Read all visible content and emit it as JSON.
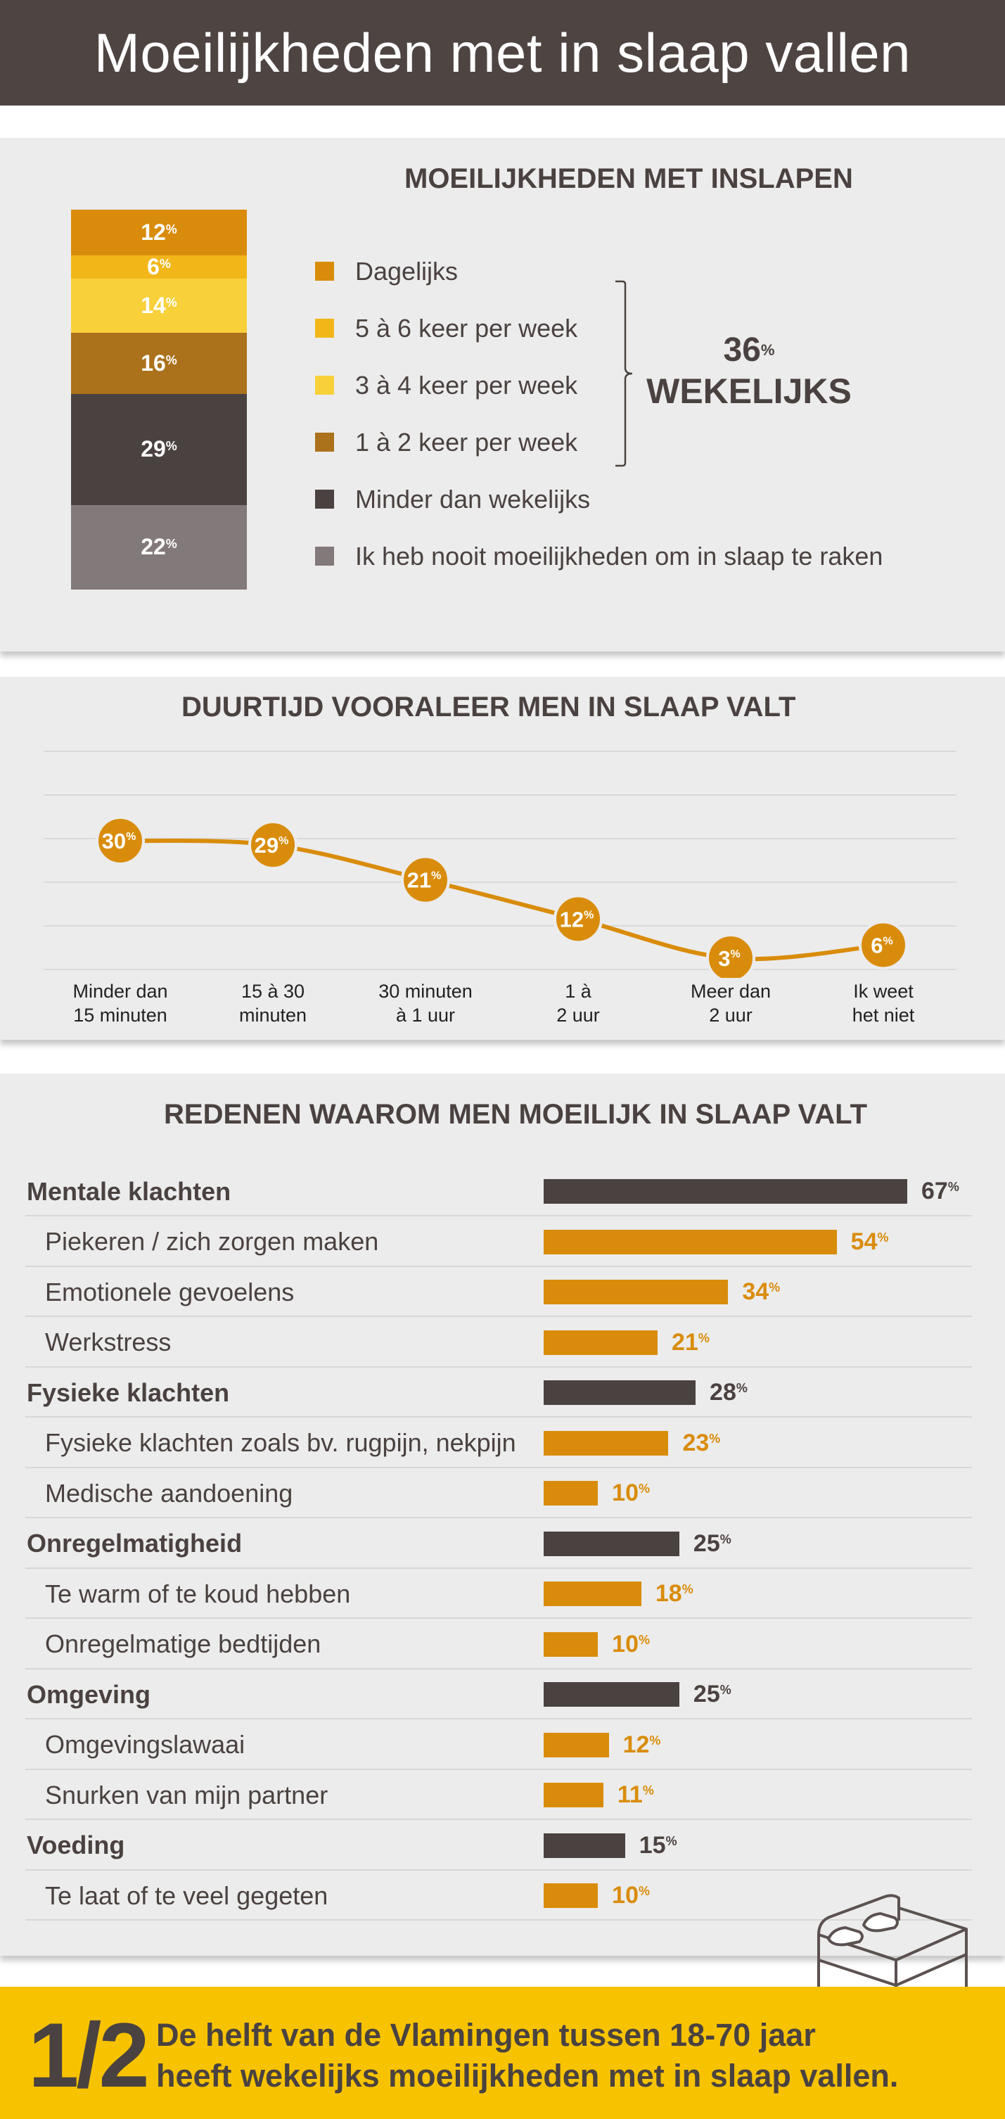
{
  "header": {
    "title": "Moeilijkheden met in slaap vallen"
  },
  "section1": {
    "title": "MOEILIJKHEDEN MET INSLAPEN",
    "stack": [
      {
        "value": 12,
        "label": "12",
        "color": "#d98c0b"
      },
      {
        "value": 6,
        "label": "6",
        "color": "#f2b619"
      },
      {
        "value": 14,
        "label": "14",
        "color": "#f8d03a"
      },
      {
        "value": 16,
        "label": "16",
        "color": "#ab711b"
      },
      {
        "value": 29,
        "label": "29",
        "color": "#4a4240"
      },
      {
        "value": 22,
        "label": "22",
        "color": "#82797a"
      }
    ],
    "legend": [
      {
        "label": "Dagelijks",
        "color": "#d98c0b"
      },
      {
        "label": "5 à 6 keer per week",
        "color": "#f2b619"
      },
      {
        "label": "3 à 4 keer per week",
        "color": "#f8d03a"
      },
      {
        "label": "1 à 2 keer per week",
        "color": "#ab711b"
      },
      {
        "label": "Minder dan wekelijks",
        "color": "#4a4240"
      },
      {
        "label": "Ik heb nooit moeilijkheden om in slaap te raken",
        "color": "#82797a"
      }
    ],
    "weekly_pct": "36",
    "weekly_label": "WEKELIJKS",
    "percent_sign": "%"
  },
  "section2": {
    "title": "DUURTIJD VOORALEER MEN IN SLAAP VALT"
  },
  "section3": {
    "title": "REDENEN WAAROM MEN MOEILIJK IN SLAAP VALT"
  },
  "footer": {
    "fraction": "1/2",
    "line1": "De helft van de Vlamingen tussen 18-70 jaar",
    "line2": "heeft wekelijks moeilijkheden met in slaap vallen."
  },
  "chart_data": [
    {
      "type": "bar",
      "stacked": true,
      "title": "MOEILIJKHEDEN MET INSLAPEN",
      "categories": [
        "Dagelijks",
        "5 à 6 keer per week",
        "3 à 4 keer per week",
        "1 à 2 keer per week",
        "Minder dan wekelijks",
        "Ik heb nooit moeilijkheden om in slaap te raken"
      ],
      "values": [
        12,
        6,
        14,
        16,
        29,
        22
      ],
      "annotation": "36% WEKELIJKS"
    },
    {
      "type": "line",
      "title": "DUURTIJD VOORALEER MEN IN SLAAP VALT",
      "categories": [
        "Minder dan 15 minuten",
        "15 à 30 minuten",
        "30 minuten à 1 uur",
        "1 à 2 uur",
        "Meer dan 2 uur",
        "Ik weet het niet"
      ],
      "category_lines": [
        [
          "Minder dan",
          "15 minuten"
        ],
        [
          "15 à 30",
          "minuten"
        ],
        [
          "30 minuten",
          "à 1 uur"
        ],
        [
          "1 à",
          "2 uur"
        ],
        [
          "Meer dan",
          "2 uur"
        ],
        [
          "Ik weet",
          "het niet"
        ]
      ],
      "values": [
        30,
        29,
        21,
        12,
        3,
        6
      ],
      "ylim": [
        0,
        50
      ],
      "grid": true,
      "color": "#d98c0b"
    },
    {
      "type": "bar",
      "orientation": "horizontal",
      "title": "REDENEN WAAROM MEN MOEILIJK IN SLAAP VALT",
      "max": 67,
      "rows": [
        {
          "label": "Mentale klachten",
          "value": 67,
          "kind": "category"
        },
        {
          "label": "Piekeren / zich zorgen maken",
          "value": 54,
          "kind": "sub"
        },
        {
          "label": "Emotionele gevoelens",
          "value": 34,
          "kind": "sub"
        },
        {
          "label": "Werkstress",
          "value": 21,
          "kind": "sub"
        },
        {
          "label": "Fysieke klachten",
          "value": 28,
          "kind": "category"
        },
        {
          "label": "Fysieke klachten zoals bv. rugpijn, nekpijn",
          "value": 23,
          "kind": "sub"
        },
        {
          "label": "Medische aandoening",
          "value": 10,
          "kind": "sub"
        },
        {
          "label": "Onregelmatigheid",
          "value": 25,
          "kind": "category"
        },
        {
          "label": "Te warm of te koud hebben",
          "value": 18,
          "kind": "sub"
        },
        {
          "label": "Onregelmatige bedtijden",
          "value": 10,
          "kind": "sub"
        },
        {
          "label": "Omgeving",
          "value": 25,
          "kind": "category"
        },
        {
          "label": "Omgevingslawaai",
          "value": 12,
          "kind": "sub"
        },
        {
          "label": "Snurken van mijn partner",
          "value": 11,
          "kind": "sub"
        },
        {
          "label": "Voeding",
          "value": 15,
          "kind": "category"
        },
        {
          "label": "Te laat of te veel gegeten",
          "value": 10,
          "kind": "sub"
        }
      ],
      "colors": {
        "category": "#4a4240",
        "sub": "#d98c0b"
      }
    }
  ]
}
